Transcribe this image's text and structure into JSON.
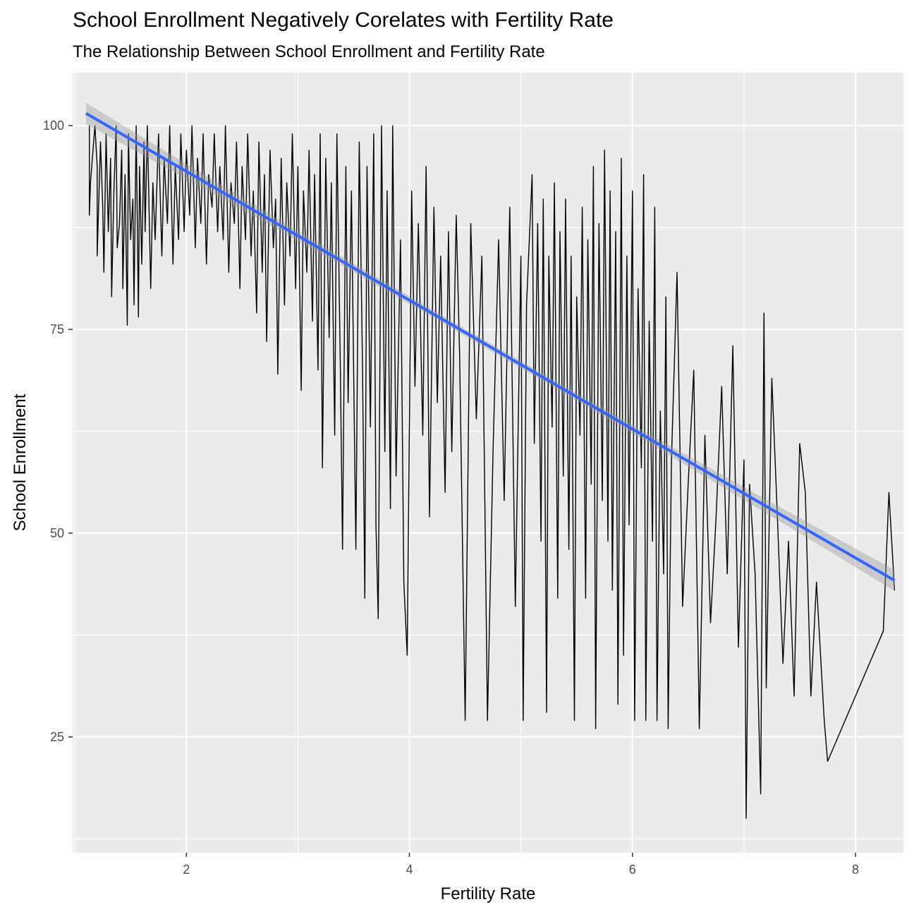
{
  "chart_data": {
    "type": "line",
    "title": "School Enrollment Negatively Corelates with Fertility Rate",
    "subtitle": "The Relationship Between School Enrollment and Fertility Rate",
    "xlabel": "Fertility Rate",
    "ylabel": "School Enrollment",
    "xlim": [
      0.98,
      8.43
    ],
    "ylim": [
      10.8,
      106.5
    ],
    "x_ticks": [
      2,
      4,
      6,
      8
    ],
    "y_ticks": [
      25,
      50,
      75,
      100
    ],
    "grid": true,
    "panel_background": "#ebebeb",
    "grid_color": "#ffffff",
    "data_color": "#000000",
    "trend_color": "#3366ff",
    "ribbon_color": "#999999",
    "lines": [
      [
        1.13,
        100
      ],
      [
        1.13,
        89
      ],
      [
        1.14,
        93
      ],
      [
        1.18,
        100
      ],
      [
        1.2,
        95
      ],
      [
        1.2,
        84
      ],
      [
        1.23,
        98
      ],
      [
        1.25,
        90
      ],
      [
        1.26,
        82
      ],
      [
        1.28,
        99
      ],
      [
        1.3,
        87
      ],
      [
        1.32,
        96
      ],
      [
        1.33,
        79
      ],
      [
        1.35,
        92
      ],
      [
        1.37,
        100
      ],
      [
        1.38,
        85
      ],
      [
        1.4,
        88
      ],
      [
        1.42,
        97
      ],
      [
        1.43,
        80
      ],
      [
        1.45,
        94
      ],
      [
        1.47,
        75.5
      ],
      [
        1.48,
        99
      ],
      [
        1.5,
        86
      ],
      [
        1.52,
        91
      ],
      [
        1.53,
        78
      ],
      [
        1.55,
        100
      ],
      [
        1.57,
        76.5
      ],
      [
        1.58,
        95
      ],
      [
        1.6,
        83
      ],
      [
        1.62,
        98
      ],
      [
        1.63,
        87
      ],
      [
        1.65,
        100
      ],
      [
        1.68,
        80
      ],
      [
        1.7,
        93
      ],
      [
        1.72,
        86
      ],
      [
        1.75,
        99
      ],
      [
        1.78,
        84
      ],
      [
        1.8,
        96
      ],
      [
        1.83,
        88
      ],
      [
        1.85,
        100
      ],
      [
        1.88,
        83
      ],
      [
        1.9,
        95
      ],
      [
        1.93,
        86
      ],
      [
        1.95,
        99
      ],
      [
        1.98,
        87
      ],
      [
        2.0,
        97
      ],
      [
        2.03,
        89
      ],
      [
        2.05,
        100
      ],
      [
        2.08,
        85
      ],
      [
        2.1,
        96
      ],
      [
        2.13,
        88
      ],
      [
        2.15,
        99
      ],
      [
        2.18,
        83
      ],
      [
        2.2,
        94
      ],
      [
        2.23,
        90
      ],
      [
        2.25,
        99
      ],
      [
        2.28,
        87
      ],
      [
        2.3,
        95
      ],
      [
        2.33,
        86
      ],
      [
        2.35,
        100
      ],
      [
        2.38,
        82
      ],
      [
        2.4,
        93
      ],
      [
        2.43,
        88
      ],
      [
        2.45,
        98
      ],
      [
        2.48,
        80
      ],
      [
        2.5,
        95
      ],
      [
        2.53,
        86
      ],
      [
        2.55,
        99
      ],
      [
        2.58,
        84
      ],
      [
        2.6,
        92
      ],
      [
        2.63,
        77
      ],
      [
        2.65,
        98
      ],
      [
        2.68,
        82
      ],
      [
        2.7,
        94
      ],
      [
        2.72,
        73.5
      ],
      [
        2.75,
        97
      ],
      [
        2.78,
        85
      ],
      [
        2.8,
        91
      ],
      [
        2.82,
        69.5
      ],
      [
        2.85,
        96
      ],
      [
        2.88,
        78
      ],
      [
        2.9,
        93
      ],
      [
        2.93,
        84
      ],
      [
        2.95,
        99
      ],
      [
        2.98,
        80
      ],
      [
        3.0,
        95
      ],
      [
        3.03,
        67.5
      ],
      [
        3.05,
        92
      ],
      [
        3.08,
        82
      ],
      [
        3.1,
        97
      ],
      [
        3.13,
        76
      ],
      [
        3.15,
        94
      ],
      [
        3.18,
        70
      ],
      [
        3.2,
        99
      ],
      [
        3.22,
        58
      ],
      [
        3.25,
        96
      ],
      [
        3.28,
        74
      ],
      [
        3.3,
        93
      ],
      [
        3.33,
        62
      ],
      [
        3.35,
        99
      ],
      [
        3.38,
        71
      ],
      [
        3.4,
        48
      ],
      [
        3.43,
        95
      ],
      [
        3.45,
        66
      ],
      [
        3.48,
        92
      ],
      [
        3.52,
        48
      ],
      [
        3.55,
        98
      ],
      [
        3.58,
        70
      ],
      [
        3.6,
        42
      ],
      [
        3.62,
        95
      ],
      [
        3.65,
        63
      ],
      [
        3.68,
        99
      ],
      [
        3.7,
        51
      ],
      [
        3.72,
        39.5
      ],
      [
        3.75,
        100
      ],
      [
        3.78,
        60
      ],
      [
        3.8,
        92
      ],
      [
        3.83,
        53
      ],
      [
        3.85,
        100
      ],
      [
        3.88,
        57
      ],
      [
        3.92,
        86
      ],
      [
        3.95,
        44
      ],
      [
        3.98,
        35
      ],
      [
        4.02,
        92
      ],
      [
        4.05,
        68
      ],
      [
        4.08,
        88
      ],
      [
        4.12,
        62
      ],
      [
        4.15,
        95
      ],
      [
        4.18,
        52
      ],
      [
        4.22,
        90
      ],
      [
        4.25,
        66
      ],
      [
        4.28,
        84
      ],
      [
        4.32,
        55
      ],
      [
        4.35,
        87
      ],
      [
        4.38,
        60
      ],
      [
        4.42,
        89
      ],
      [
        4.45,
        72
      ],
      [
        4.5,
        27
      ],
      [
        4.55,
        88
      ],
      [
        4.6,
        64
      ],
      [
        4.65,
        84
      ],
      [
        4.7,
        27
      ],
      [
        4.75,
        60
      ],
      [
        4.8,
        86
      ],
      [
        4.85,
        54
      ],
      [
        4.9,
        90
      ],
      [
        4.95,
        41
      ],
      [
        5.0,
        84
      ],
      [
        5.02,
        27
      ],
      [
        5.05,
        78
      ],
      [
        5.1,
        94
      ],
      [
        5.12,
        61
      ],
      [
        5.15,
        88
      ],
      [
        5.18,
        49
      ],
      [
        5.2,
        91
      ],
      [
        5.23,
        28
      ],
      [
        5.25,
        84
      ],
      [
        5.28,
        63
      ],
      [
        5.3,
        93
      ],
      [
        5.33,
        42
      ],
      [
        5.35,
        87
      ],
      [
        5.38,
        57
      ],
      [
        5.4,
        91
      ],
      [
        5.43,
        48
      ],
      [
        5.45,
        84
      ],
      [
        5.48,
        27
      ],
      [
        5.5,
        79
      ],
      [
        5.53,
        62
      ],
      [
        5.55,
        90
      ],
      [
        5.58,
        42
      ],
      [
        5.6,
        86
      ],
      [
        5.63,
        56
      ],
      [
        5.65,
        95
      ],
      [
        5.67,
        26
      ],
      [
        5.7,
        88
      ],
      [
        5.73,
        54
      ],
      [
        5.75,
        97
      ],
      [
        5.78,
        49
      ],
      [
        5.8,
        92
      ],
      [
        5.82,
        43
      ],
      [
        5.85,
        87
      ],
      [
        5.87,
        29
      ],
      [
        5.9,
        96
      ],
      [
        5.92,
        35
      ],
      [
        5.95,
        84
      ],
      [
        5.97,
        51
      ],
      [
        6.0,
        92
      ],
      [
        6.02,
        27
      ],
      [
        6.05,
        80
      ],
      [
        6.08,
        58
      ],
      [
        6.1,
        94
      ],
      [
        6.12,
        27
      ],
      [
        6.15,
        76
      ],
      [
        6.18,
        49
      ],
      [
        6.2,
        90
      ],
      [
        6.22,
        27
      ],
      [
        6.25,
        65
      ],
      [
        6.28,
        45
      ],
      [
        6.3,
        79
      ],
      [
        6.32,
        26
      ],
      [
        6.35,
        59
      ],
      [
        6.4,
        82
      ],
      [
        6.45,
        41
      ],
      [
        6.5,
        56
      ],
      [
        6.55,
        70
      ],
      [
        6.6,
        26
      ],
      [
        6.65,
        62
      ],
      [
        6.7,
        39
      ],
      [
        6.75,
        52
      ],
      [
        6.8,
        68
      ],
      [
        6.85,
        45
      ],
      [
        6.9,
        73
      ],
      [
        6.95,
        36
      ],
      [
        7.0,
        59
      ],
      [
        7.02,
        15
      ],
      [
        7.05,
        56
      ],
      [
        7.1,
        45
      ],
      [
        7.15,
        18
      ],
      [
        7.18,
        77
      ],
      [
        7.2,
        31
      ],
      [
        7.25,
        69
      ],
      [
        7.3,
        52
      ],
      [
        7.35,
        34
      ],
      [
        7.4,
        49
      ],
      [
        7.45,
        30
      ],
      [
        7.5,
        61
      ],
      [
        7.55,
        55
      ],
      [
        7.6,
        30
      ],
      [
        7.65,
        44
      ],
      [
        7.72,
        27
      ],
      [
        7.75,
        22
      ],
      [
        8.25,
        38
      ],
      [
        8.3,
        55
      ],
      [
        8.35,
        43
      ]
    ],
    "trend": {
      "x": [
        1.1,
        8.35
      ],
      "y": [
        101.5,
        44.2
      ],
      "ribbon_halfwidth_ends": 1.3,
      "ribbon_halfwidth_mid": 0.45
    }
  }
}
